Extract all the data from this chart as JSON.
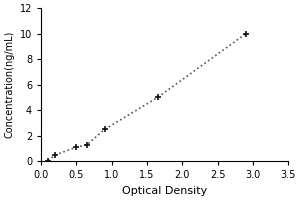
{
  "x_data": [
    0.1,
    0.2,
    0.5,
    0.65,
    0.9,
    1.65,
    2.9
  ],
  "y_data": [
    0.05,
    0.5,
    1.1,
    1.3,
    2.5,
    5.0,
    10.0
  ],
  "xlabel": "Optical Density",
  "ylabel": "Concentration(ng/mL)",
  "xlim": [
    0,
    3.5
  ],
  "ylim": [
    0,
    12
  ],
  "xticks": [
    0,
    0.5,
    1,
    1.5,
    2,
    2.5,
    3,
    3.5
  ],
  "yticks": [
    0,
    2,
    4,
    6,
    8,
    10,
    12
  ],
  "line_color": "#555555",
  "marker_color": "#111111",
  "background_color": "#ffffff",
  "line_style": "dotted",
  "marker_style": "+",
  "marker_size": 5,
  "line_width": 1.2,
  "xlabel_fontsize": 8,
  "ylabel_fontsize": 7,
  "tick_fontsize": 7
}
